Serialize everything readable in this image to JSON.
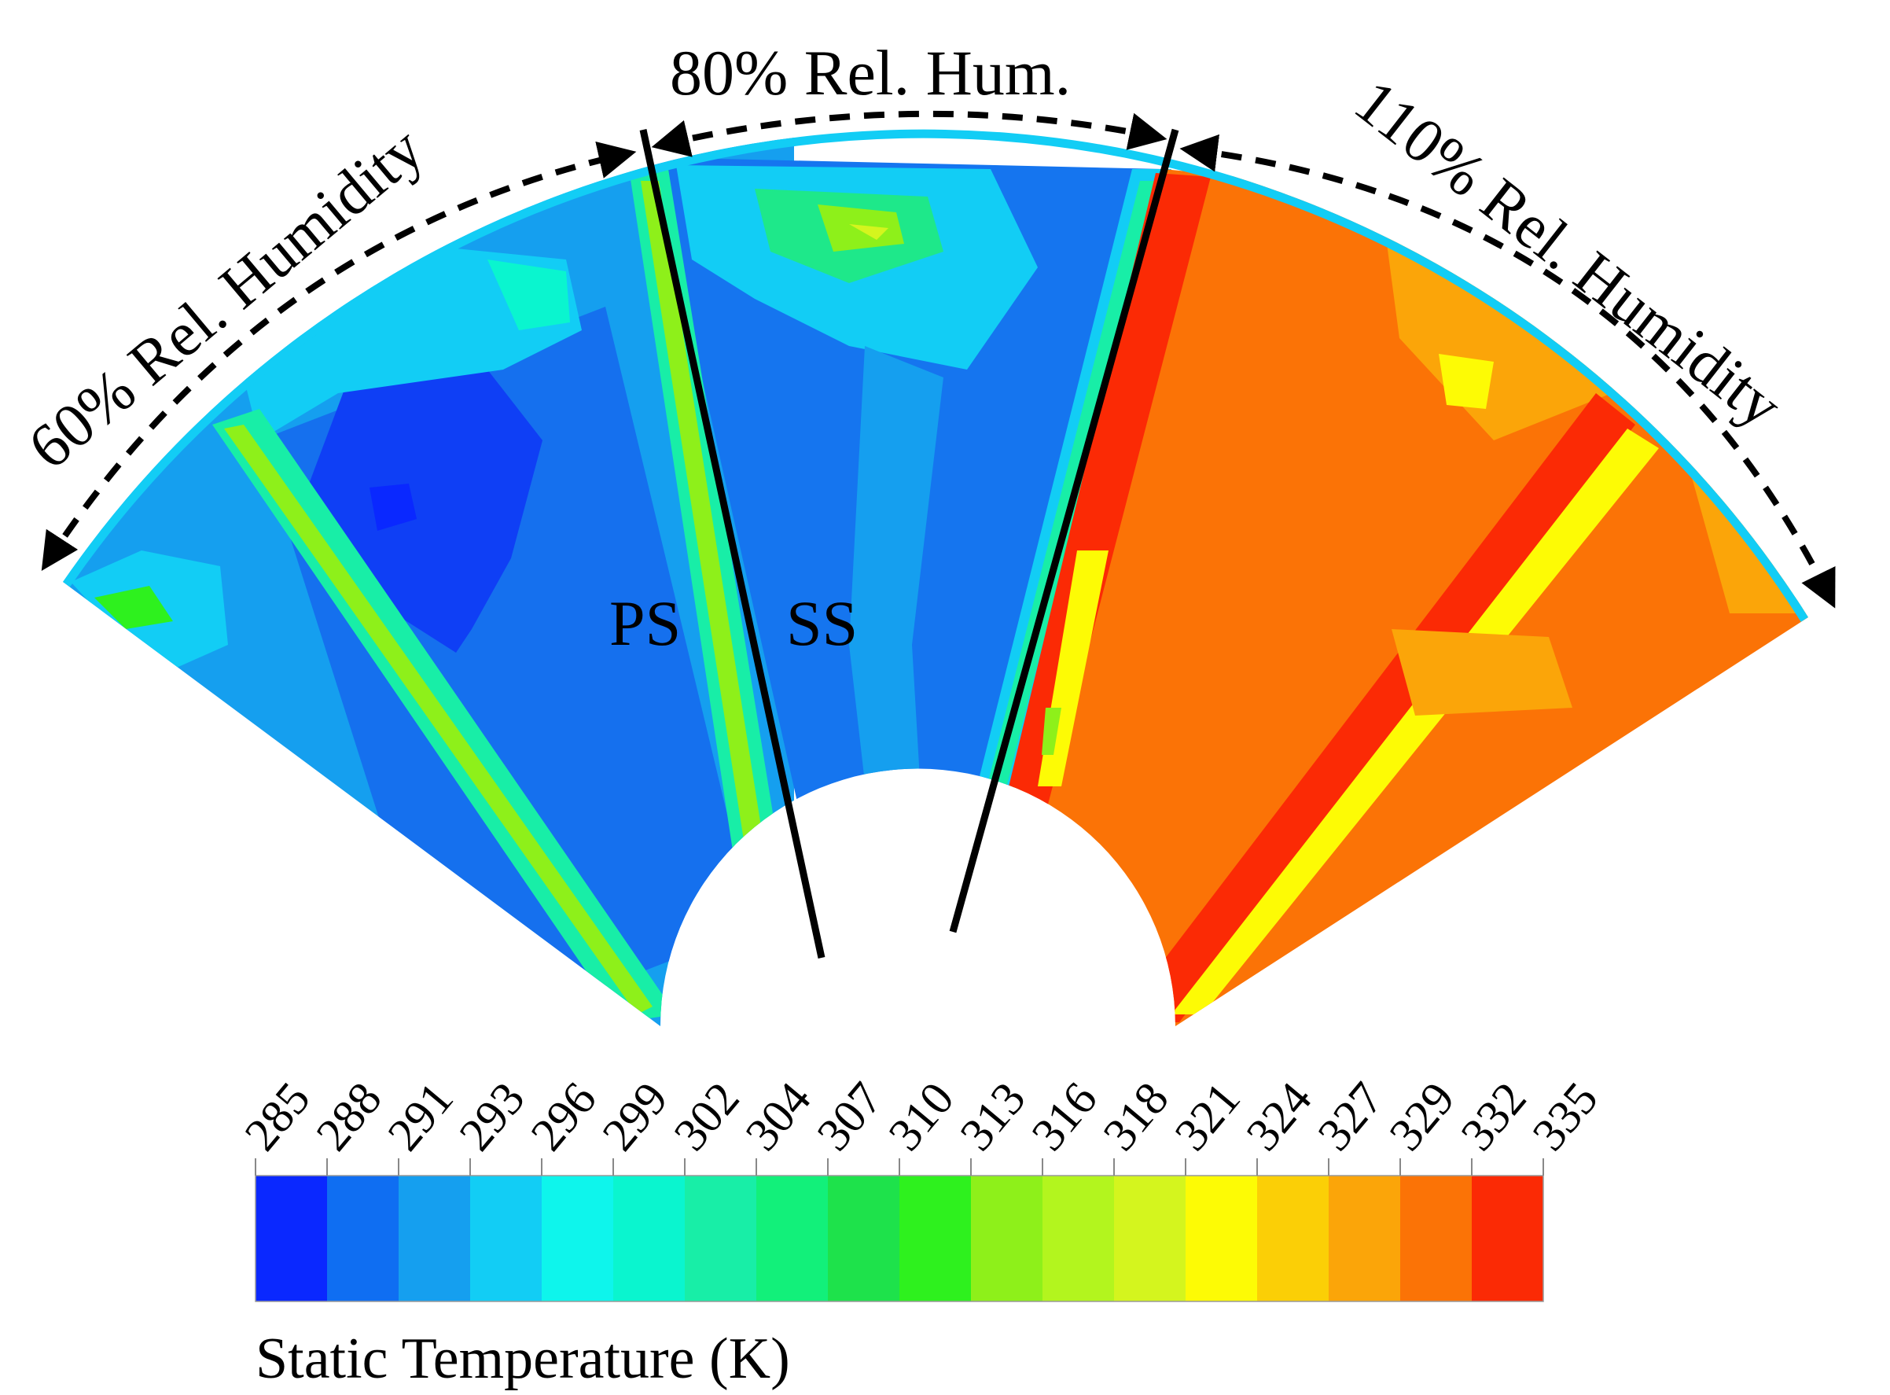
{
  "labels": {
    "left_region": "60% Rel. Humidity",
    "middle_region": "80% Rel. Hum.",
    "right_region": "110% Rel. Humidity",
    "pressure_side": "PS",
    "suction_side": "SS"
  },
  "colorbar": {
    "title": "Static Temperature (K)",
    "ticks": [
      "285",
      "288",
      "291",
      "293",
      "296",
      "299",
      "302",
      "304",
      "307",
      "310",
      "313",
      "316",
      "318",
      "321",
      "324",
      "327",
      "329",
      "332",
      "335"
    ],
    "colors": [
      "#0a28ff",
      "#0f6ef2",
      "#159fef",
      "#12cdf5",
      "#0ef5ec",
      "#0af5cf",
      "#18eea7",
      "#12f07a",
      "#1ee24b",
      "#2ef11e",
      "#8ef01a",
      "#b3f51e",
      "#d4f51e",
      "#fdfb05",
      "#fbcf06",
      "#fba509",
      "#fb7306",
      "#fb2a05"
    ]
  },
  "region_colors": {
    "low_humidity": "#1570ee",
    "mid_humidity": "#1575ef",
    "high_humidity": "#fb7306",
    "edge_hot": "#fb2a05",
    "wake_cool": "#1ee88a"
  }
}
